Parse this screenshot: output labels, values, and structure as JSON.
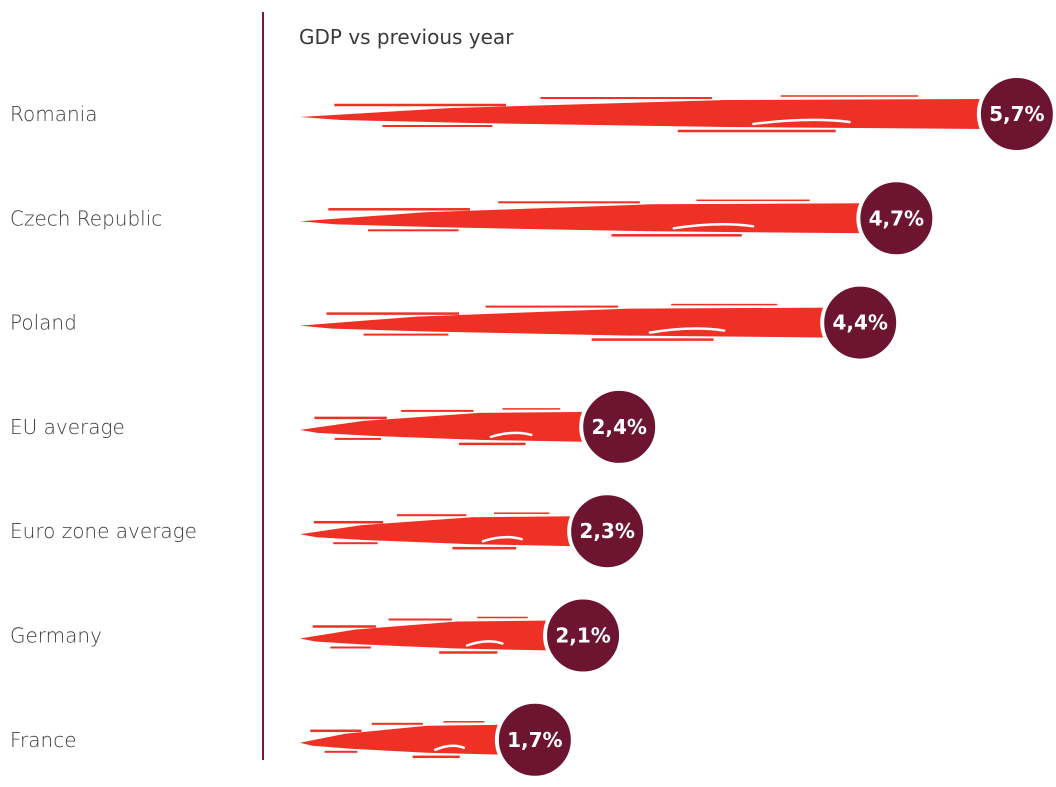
{
  "chart_data": {
    "type": "bar",
    "orientation": "horizontal",
    "title": "GDP vs previous year",
    "categories": [
      "Romania",
      "Czech Republic",
      "Poland",
      "EU average",
      "Euro zone average",
      "Germany",
      "France"
    ],
    "values": [
      5.7,
      4.7,
      4.4,
      2.4,
      2.3,
      2.1,
      1.7
    ],
    "value_labels": [
      "5,7%",
      "4,7%",
      "4,4%",
      "2,4%",
      "2,3%",
      "2,1%",
      "1,7%"
    ],
    "xlabel": "",
    "ylabel": "",
    "grid": false,
    "legend": "none"
  },
  "colors": {
    "bar": "#ee3124",
    "badge": "#6d1430",
    "axis": "#7a1a35",
    "text": "#3a3a3a",
    "badge_text": "#ffffff"
  }
}
